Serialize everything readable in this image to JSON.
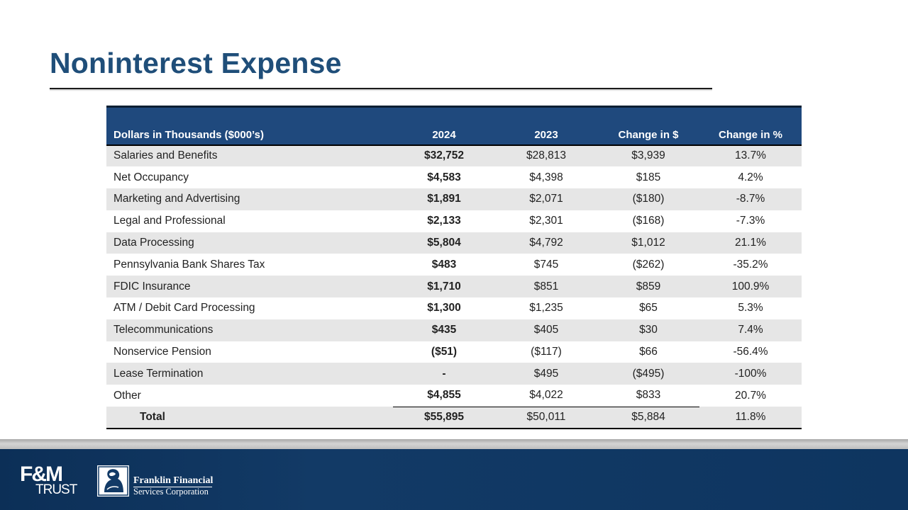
{
  "slide": {
    "title": "Noninterest Expense"
  },
  "table": {
    "headers": [
      "Dollars in Thousands ($000’s)",
      "2024",
      "2023",
      "Change in $",
      "Change in %"
    ],
    "rows": [
      [
        "Salaries and Benefits",
        "$32,752",
        "$28,813",
        "$3,939",
        "13.7%"
      ],
      [
        "Net Occupancy",
        "$4,583",
        "$4,398",
        "$185",
        "4.2%"
      ],
      [
        "Marketing and Advertising",
        "$1,891",
        "$2,071",
        "($180)",
        "-8.7%"
      ],
      [
        "Legal and Professional",
        "$2,133",
        "$2,301",
        "($168)",
        "-7.3%"
      ],
      [
        "Data Processing",
        "$5,804",
        "$4,792",
        "$1,012",
        "21.1%"
      ],
      [
        "Pennsylvania Bank Shares Tax",
        "$483",
        "$745",
        "($262)",
        "-35.2%"
      ],
      [
        "FDIC Insurance",
        "$1,710",
        "$851",
        "$859",
        "100.9%"
      ],
      [
        "ATM / Debit Card Processing",
        "$1,300",
        "$1,235",
        "$65",
        "5.3%"
      ],
      [
        "Telecommunications",
        "$435",
        "$405",
        "$30",
        "7.4%"
      ],
      [
        "Nonservice Pension",
        "($51)",
        "($117)",
        "$66",
        "-56.4%"
      ],
      [
        "Lease Termination",
        "-",
        "$495",
        "($495)",
        "-100%"
      ],
      [
        "Other",
        "$4,855",
        "$4,022",
        "$833",
        "20.7%"
      ]
    ],
    "total": [
      "Total",
      "$55,895",
      "$50,011",
      "$5,884",
      "11.8%"
    ]
  },
  "footer": {
    "fm_logo_top": "F&M",
    "fm_logo_bottom": "TRUST",
    "ffsc_line1": "Franklin Financial",
    "ffsc_line2": "Services Corporation"
  },
  "colors": {
    "title": "#1f4e79",
    "header_bg": "#1f497d",
    "stripe": "#e6e6e6",
    "footer_bg": "#0e3560"
  }
}
